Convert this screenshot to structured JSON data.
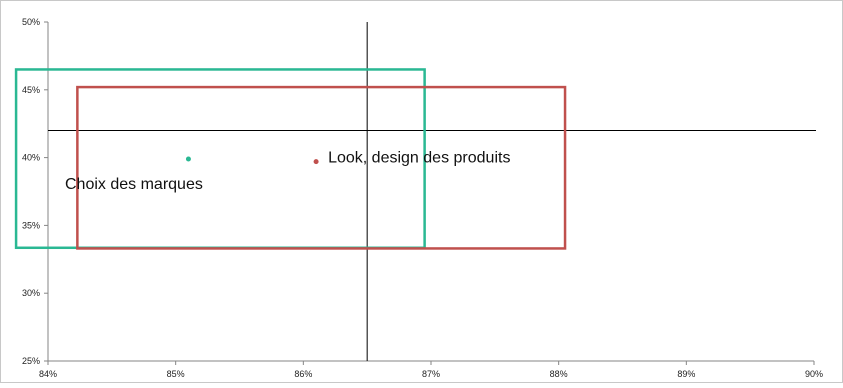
{
  "chart_data": {
    "type": "scatter",
    "x": {
      "range": [
        0.84,
        0.9
      ],
      "ticks": [
        0.84,
        0.85,
        0.86,
        0.87,
        0.88,
        0.89,
        0.9
      ],
      "tick_labels": [
        "84%",
        "85%",
        "86%",
        "87%",
        "88%",
        "89%",
        "90%"
      ]
    },
    "y": {
      "range": [
        0.25,
        0.5
      ],
      "ticks": [
        0.25,
        0.3,
        0.35,
        0.4,
        0.45,
        0.5
      ],
      "tick_labels": [
        "25%",
        "30%",
        "35%",
        "40%",
        "45%",
        "50%"
      ]
    },
    "grid": false,
    "reference_lines": {
      "x": 0.865,
      "y": 0.42
    },
    "series": [
      {
        "label": "Choix des marques",
        "color": "#2ab893",
        "point": {
          "x": 0.851,
          "y": 0.399
        },
        "box": {
          "x0": 0.8375,
          "x1": 0.8695,
          "y0": 0.3335,
          "y1": 0.465
        }
      },
      {
        "label": "Look, design des produits",
        "color": "#c0504d",
        "point": {
          "x": 0.861,
          "y": 0.397
        },
        "box": {
          "x0": 0.8423,
          "x1": 0.8805,
          "y0": 0.333,
          "y1": 0.452
        }
      }
    ]
  }
}
